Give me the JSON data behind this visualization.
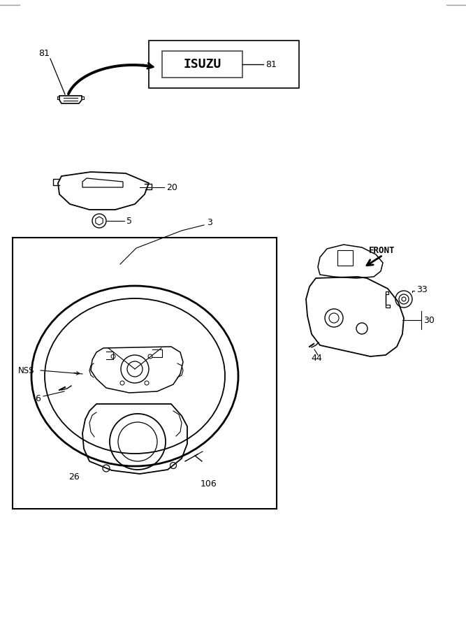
{
  "bg_color": "#ffffff",
  "line_color": "#000000",
  "fig_width": 6.67,
  "fig_height": 9.0,
  "dpi": 100,
  "labels": {
    "81_top": "81",
    "81_right": "81",
    "20": "20",
    "5": "5",
    "3": "3",
    "6": "6",
    "26": "26",
    "106": "106",
    "NSS": "NSS",
    "33": "33",
    "30": "30",
    "44": "44",
    "FRONT": "FRONT"
  }
}
